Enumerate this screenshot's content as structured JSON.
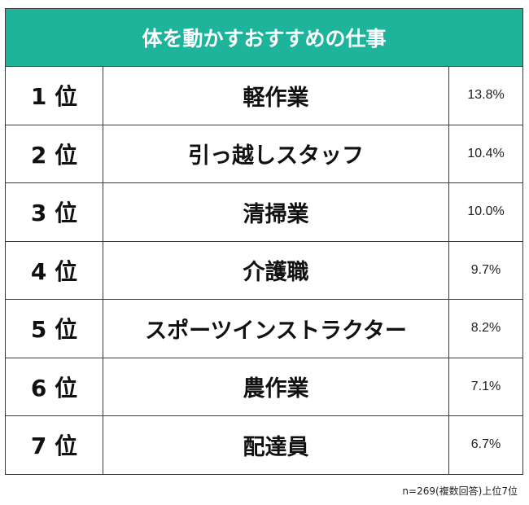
{
  "colors": {
    "header_bg": "#1eb49c",
    "header_text": "#ffffff",
    "border": "#3a3a3a",
    "text": "#111111"
  },
  "chart_data": {
    "type": "table",
    "title": "体を動かすおすすめの仕事",
    "rows": [
      {
        "rank": "1 位",
        "job": "軽作業",
        "percent": "13.8%",
        "value": 13.8
      },
      {
        "rank": "2 位",
        "job": "引っ越しスタッフ",
        "percent": "10.4%",
        "value": 10.4
      },
      {
        "rank": "3 位",
        "job": "清掃業",
        "percent": "10.0%",
        "value": 10.0
      },
      {
        "rank": "4 位",
        "job": "介護職",
        "percent": "9.7%",
        "value": 9.7
      },
      {
        "rank": "5 位",
        "job": "スポーツインストラクター",
        "percent": "8.2%",
        "value": 8.2
      },
      {
        "rank": "6 位",
        "job": "農作業",
        "percent": "7.1%",
        "value": 7.1
      },
      {
        "rank": "7 位",
        "job": "配達員",
        "percent": "6.7%",
        "value": 6.7
      }
    ],
    "note": "n=269(複数回答)上位7位"
  }
}
